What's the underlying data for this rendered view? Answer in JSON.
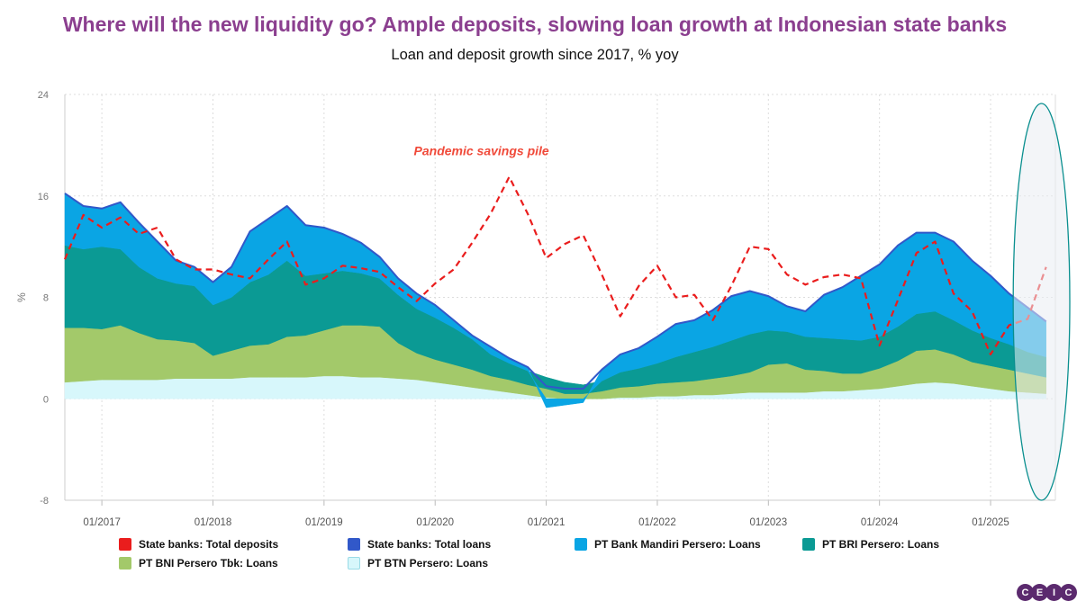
{
  "title": "Where will the new liquidity go? Ample deposits, slowing loan growth at Indonesian state banks",
  "subtitle": "Loan and deposit growth since 2017, % yoy",
  "logo": [
    "C",
    "E",
    "I",
    "C"
  ],
  "chart_data": {
    "type": "area",
    "ylabel": "%",
    "ylim": [
      -8,
      24
    ],
    "yticks": [
      "24",
      "16",
      "8",
      "0",
      "-8"
    ],
    "ytick_values": [
      24,
      16,
      8,
      0,
      -8
    ],
    "xlim": [
      "2016-09",
      "2025-08"
    ],
    "xticks": [
      "01/2017",
      "01/2018",
      "01/2019",
      "01/2020",
      "01/2021",
      "01/2022",
      "01/2023",
      "01/2024",
      "01/2025"
    ],
    "xtick_values": [
      "2017-01",
      "2018-01",
      "2019-01",
      "2020-01",
      "2021-01",
      "2022-01",
      "2023-01",
      "2024-01",
      "2025-01"
    ],
    "grid": true,
    "annotation": {
      "text": "Pandemic savings pile",
      "x": "2020-06",
      "y": 19.5,
      "color": "#f04a3a"
    },
    "highlight_ellipse": {
      "x_from": "2025-05",
      "x_to": "2025-08"
    },
    "x": [
      "2016-09",
      "2016-11",
      "2017-01",
      "2017-03",
      "2017-05",
      "2017-07",
      "2017-09",
      "2017-11",
      "2018-01",
      "2018-03",
      "2018-05",
      "2018-07",
      "2018-09",
      "2018-11",
      "2019-01",
      "2019-03",
      "2019-05",
      "2019-07",
      "2019-09",
      "2019-11",
      "2020-01",
      "2020-03",
      "2020-05",
      "2020-07",
      "2020-09",
      "2020-11",
      "2021-01",
      "2021-03",
      "2021-05",
      "2021-07",
      "2021-09",
      "2021-11",
      "2022-01",
      "2022-03",
      "2022-05",
      "2022-07",
      "2022-09",
      "2022-11",
      "2023-01",
      "2023-03",
      "2023-05",
      "2023-07",
      "2023-09",
      "2023-11",
      "2024-01",
      "2024-03",
      "2024-05",
      "2024-07",
      "2024-09",
      "2024-11",
      "2025-01",
      "2025-03",
      "2025-05",
      "2025-07"
    ],
    "series": [
      {
        "name": "PT BTN Persero: Loans",
        "color": "#d7f7fb",
        "kind": "stack",
        "values": [
          1.3,
          1.4,
          1.5,
          1.5,
          1.5,
          1.5,
          1.6,
          1.6,
          1.6,
          1.6,
          1.7,
          1.7,
          1.7,
          1.7,
          1.8,
          1.8,
          1.7,
          1.7,
          1.6,
          1.5,
          1.3,
          1.1,
          0.9,
          0.7,
          0.5,
          0.3,
          0.1,
          0.0,
          0.0,
          0.0,
          0.1,
          0.1,
          0.2,
          0.2,
          0.3,
          0.3,
          0.4,
          0.5,
          0.5,
          0.5,
          0.5,
          0.6,
          0.6,
          0.7,
          0.8,
          1.0,
          1.2,
          1.3,
          1.2,
          1.0,
          0.8,
          0.6,
          0.5,
          0.4
        ]
      },
      {
        "name": "PT BNI Persero Tbk: Loans",
        "color": "#a3c96a",
        "kind": "stack",
        "values": [
          4.3,
          4.2,
          4.0,
          4.3,
          3.7,
          3.2,
          3.0,
          2.8,
          1.8,
          2.2,
          2.5,
          2.6,
          3.2,
          3.3,
          3.6,
          4.0,
          4.1,
          4.0,
          2.8,
          2.1,
          1.8,
          1.6,
          1.4,
          1.1,
          1.0,
          0.8,
          0.7,
          0.4,
          0.4,
          0.6,
          0.8,
          0.9,
          1.0,
          1.1,
          1.1,
          1.3,
          1.4,
          1.6,
          2.2,
          2.3,
          1.8,
          1.6,
          1.4,
          1.3,
          1.6,
          2.0,
          2.6,
          2.6,
          2.3,
          1.9,
          1.8,
          1.7,
          1.5,
          1.3
        ]
      },
      {
        "name": "PT BRI Persero: Loans",
        "color": "#0b9a94",
        "kind": "stack",
        "values": [
          6.5,
          6.2,
          6.5,
          6.0,
          5.2,
          4.8,
          4.5,
          4.5,
          4.0,
          4.2,
          5.0,
          5.5,
          6.0,
          4.7,
          4.5,
          4.3,
          4.1,
          3.8,
          3.8,
          3.5,
          3.3,
          2.9,
          2.4,
          1.7,
          1.3,
          1.1,
          0.9,
          0.9,
          0.7,
          0.8,
          1.2,
          1.4,
          1.6,
          2.0,
          2.3,
          2.5,
          2.8,
          3.0,
          2.7,
          2.5,
          2.6,
          2.6,
          2.7,
          2.6,
          2.5,
          2.7,
          2.9,
          3.0,
          2.7,
          2.5,
          2.2,
          2.0,
          1.7,
          1.6
        ]
      },
      {
        "name": "PT Bank Mandiri Persero: Loans",
        "color": "#0aa5e4",
        "kind": "stack",
        "values": [
          4.1,
          3.4,
          3.0,
          3.7,
          3.5,
          2.9,
          1.8,
          1.5,
          1.8,
          2.4,
          4.0,
          4.4,
          4.3,
          4.0,
          3.6,
          2.9,
          2.4,
          1.7,
          1.3,
          1.2,
          1.0,
          0.6,
          0.3,
          0.6,
          0.4,
          0.3,
          -0.7,
          -0.5,
          -0.3,
          0.9,
          1.4,
          1.6,
          2.1,
          2.6,
          2.5,
          2.9,
          3.5,
          3.4,
          2.7,
          2.0,
          2.0,
          3.4,
          4.1,
          5.1,
          5.7,
          6.4,
          6.4,
          6.2,
          6.2,
          5.5,
          4.9,
          4.0,
          3.5,
          2.8
        ]
      },
      {
        "name": "State banks: Total loans",
        "color": "#3158c9",
        "kind": "line",
        "values": [
          16.2,
          15.2,
          15.0,
          15.5,
          13.9,
          12.4,
          10.9,
          10.4,
          9.2,
          10.4,
          13.2,
          14.2,
          15.2,
          13.7,
          13.5,
          13.0,
          12.3,
          11.2,
          9.5,
          8.3,
          7.4,
          6.2,
          5.0,
          4.1,
          3.2,
          2.5,
          1.0,
          0.8,
          0.8,
          2.3,
          3.5,
          4.0,
          4.9,
          5.9,
          6.2,
          7.0,
          8.1,
          8.5,
          8.1,
          7.3,
          6.9,
          8.2,
          8.8,
          9.7,
          10.6,
          12.1,
          13.1,
          13.1,
          12.4,
          10.9,
          9.7,
          8.3,
          7.2,
          6.1
        ]
      },
      {
        "name": "State banks: Total deposits",
        "color": "#ea1d1d",
        "kind": "dashed",
        "values": [
          11.0,
          14.5,
          13.5,
          14.3,
          13.0,
          13.5,
          11.0,
          10.2,
          10.2,
          9.8,
          9.5,
          11.0,
          12.4,
          9.0,
          9.5,
          10.5,
          10.3,
          10.0,
          8.8,
          7.7,
          9.1,
          10.2,
          12.3,
          14.6,
          17.5,
          14.6,
          11.1,
          12.2,
          12.9,
          9.8,
          6.5,
          8.9,
          10.5,
          8.0,
          8.2,
          6.2,
          8.9,
          12.0,
          11.8,
          9.8,
          9.0,
          9.6,
          9.8,
          9.5,
          4.2,
          7.8,
          11.5,
          12.4,
          8.3,
          6.9,
          3.5,
          5.8,
          6.3,
          10.4
        ]
      }
    ]
  },
  "legend": [
    {
      "label": "State banks: Total deposits",
      "color": "#ea1d1d"
    },
    {
      "label": "State banks: Total loans",
      "color": "#3158c9"
    },
    {
      "label": "PT Bank Mandiri Persero: Loans",
      "color": "#0aa5e4"
    },
    {
      "label": "PT BRI Persero: Loans",
      "color": "#0b9a94"
    },
    {
      "label": "PT BNI Persero Tbk: Loans",
      "color": "#a3c96a"
    },
    {
      "label": "PT BTN Persero: Loans",
      "color": "#d7f7fb"
    }
  ]
}
